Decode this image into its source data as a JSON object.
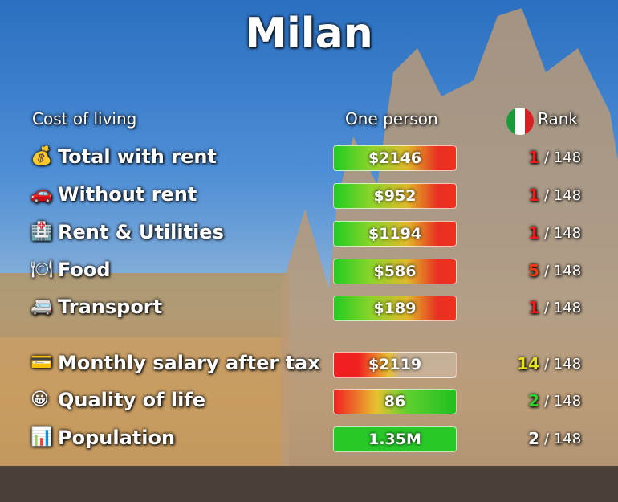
{
  "title": "Milan",
  "header": {
    "label": "Cost of living",
    "value": "One person",
    "rank": "Rank"
  },
  "rows": [
    {
      "label": "Total with rent",
      "value": "$2146",
      "rank": "1",
      "total": "/ 148",
      "rank_color": "#ee1c1c"
    },
    {
      "label": "Without rent",
      "value": "$952",
      "rank": "1",
      "total": "/ 148",
      "rank_color": "#ee1c1c"
    },
    {
      "label": "Rent & Utilities",
      "value": "$1194",
      "rank": "1",
      "total": "/ 148",
      "rank_color": "#ee1c1c"
    },
    {
      "label": "Food",
      "value": "$586",
      "rank": "5",
      "total": "/ 148",
      "rank_color": "#f03a10"
    },
    {
      "label": "Transport",
      "value": "$189",
      "rank": "1",
      "total": "/ 148",
      "rank_color": "#ee1c1c"
    },
    {
      "label": "Monthly salary after tax",
      "value": "$2119",
      "rank": "14",
      "total": "/ 148",
      "rank_color": "#e6e21e"
    },
    {
      "label": "Quality of life",
      "value": "86",
      "rank": "2",
      "total": "/ 148",
      "rank_color": "#2ed52e"
    },
    {
      "label": "Population",
      "value": "1.35M",
      "rank": "2",
      "total": "/ 148",
      "rank_color": "#ffffff"
    }
  ]
}
